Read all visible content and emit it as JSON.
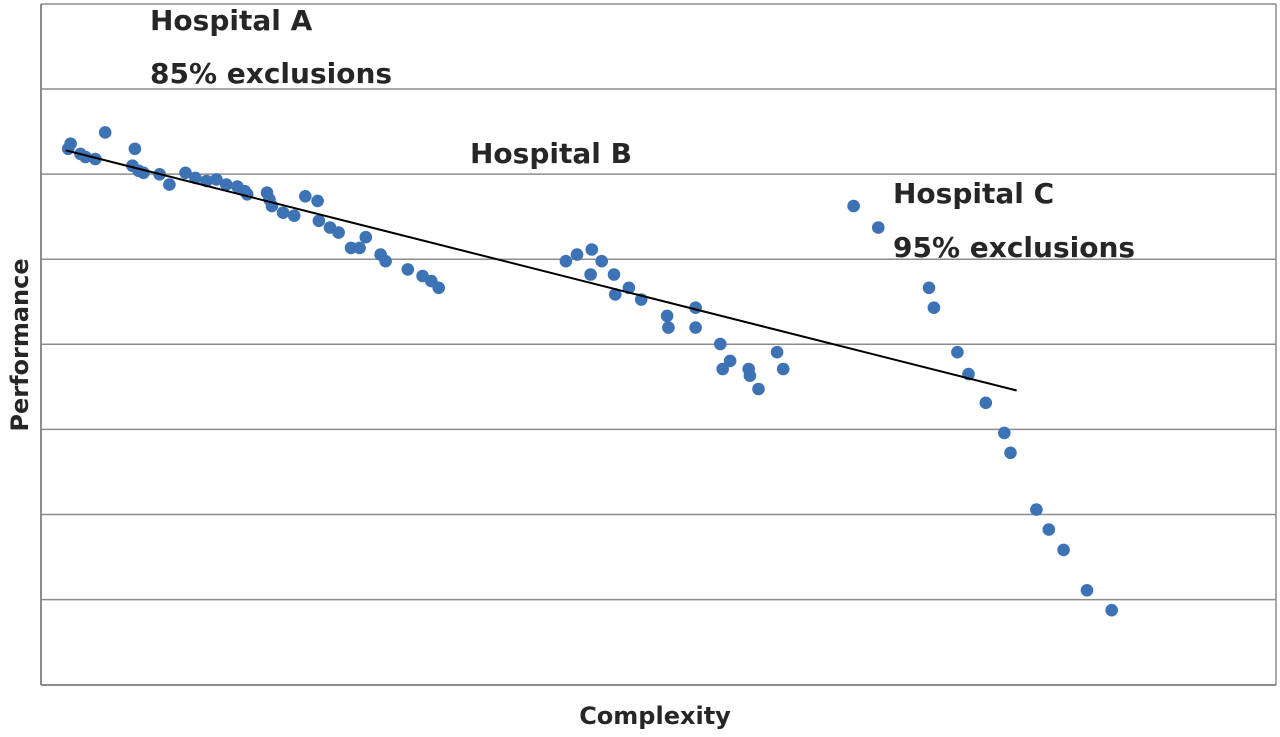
{
  "chart_data": {
    "type": "scatter",
    "title": "",
    "xlabel": "Complexity",
    "ylabel": "Performance",
    "xlim": [
      0,
      100
    ],
    "ylim": [
      0,
      100
    ],
    "grid": "horizontal",
    "tick_labels_shown": false,
    "point_color": "#3D72B4",
    "trendline_color": "#000000",
    "trendline": {
      "x": [
        2,
        79
      ],
      "y": [
        88,
        41
      ]
    },
    "annotations": [
      {
        "lines": [
          "Hospital A",
          "85% exclusions"
        ]
      },
      {
        "lines": [
          "Hospital B"
        ]
      },
      {
        "lines": [
          "Hospital C",
          "95% exclusions"
        ]
      }
    ],
    "series": [
      {
        "values": [
          [
            2.4,
            89.3
          ],
          [
            2.2,
            88.3
          ],
          [
            3.2,
            87.3
          ],
          [
            3.6,
            86.7
          ],
          [
            4.4,
            86.3
          ],
          [
            5.2,
            91.5
          ],
          [
            7.4,
            85.0
          ],
          [
            7.9,
            84.0
          ],
          [
            8.3,
            83.6
          ],
          [
            7.6,
            88.3
          ],
          [
            9.6,
            83.3
          ],
          [
            10.4,
            81.3
          ],
          [
            11.7,
            83.6
          ],
          [
            12.5,
            82.6
          ],
          [
            13.4,
            82.0
          ],
          [
            14.2,
            82.3
          ],
          [
            15.0,
            81.3
          ],
          [
            15.9,
            80.9
          ],
          [
            16.5,
            80.0
          ],
          [
            16.7,
            79.4
          ],
          [
            18.3,
            79.7
          ],
          [
            18.5,
            78.4
          ],
          [
            18.7,
            77.1
          ],
          [
            19.6,
            75.8
          ],
          [
            20.5,
            75.2
          ],
          [
            21.4,
            79.0
          ],
          [
            22.4,
            78.1
          ],
          [
            22.5,
            74.2
          ],
          [
            23.4,
            72.9
          ],
          [
            24.1,
            71.9
          ],
          [
            25.1,
            68.9
          ],
          [
            25.8,
            68.9
          ],
          [
            26.3,
            71.0
          ],
          [
            27.5,
            67.6
          ],
          [
            27.9,
            66.3
          ],
          [
            29.7,
            64.7
          ],
          [
            30.9,
            63.4
          ],
          [
            31.6,
            62.4
          ],
          [
            32.2,
            61.1
          ]
        ]
      },
      {
        "values": [
          [
            42.5,
            66.3
          ],
          [
            43.4,
            67.6
          ],
          [
            44.6,
            68.6
          ],
          [
            44.5,
            63.7
          ],
          [
            45.4,
            66.3
          ],
          [
            46.4,
            63.7
          ],
          [
            46.5,
            59.8
          ],
          [
            47.6,
            61.1
          ],
          [
            48.6,
            58.8
          ],
          [
            50.7,
            55.6
          ],
          [
            50.8,
            53.3
          ],
          [
            53.0,
            57.2
          ],
          [
            53.0,
            53.3
          ],
          [
            55.0,
            50.1
          ],
          [
            55.2,
            45.2
          ],
          [
            55.8,
            46.8
          ],
          [
            57.3,
            45.2
          ],
          [
            57.4,
            43.9
          ],
          [
            58.1,
            41.3
          ],
          [
            59.6,
            48.5
          ],
          [
            60.1,
            45.2
          ]
        ]
      },
      {
        "values": [
          [
            65.8,
            77.1
          ],
          [
            67.8,
            72.9
          ],
          [
            71.9,
            61.1
          ],
          [
            72.3,
            57.2
          ],
          [
            74.2,
            48.5
          ],
          [
            75.1,
            44.2
          ],
          [
            76.5,
            38.6
          ],
          [
            78.0,
            32.7
          ],
          [
            78.5,
            28.8
          ],
          [
            80.6,
            17.7
          ],
          [
            81.6,
            13.8
          ],
          [
            82.8,
            9.8
          ],
          [
            84.7,
            1.9
          ],
          [
            86.7,
            -2.0
          ]
        ]
      }
    ]
  }
}
